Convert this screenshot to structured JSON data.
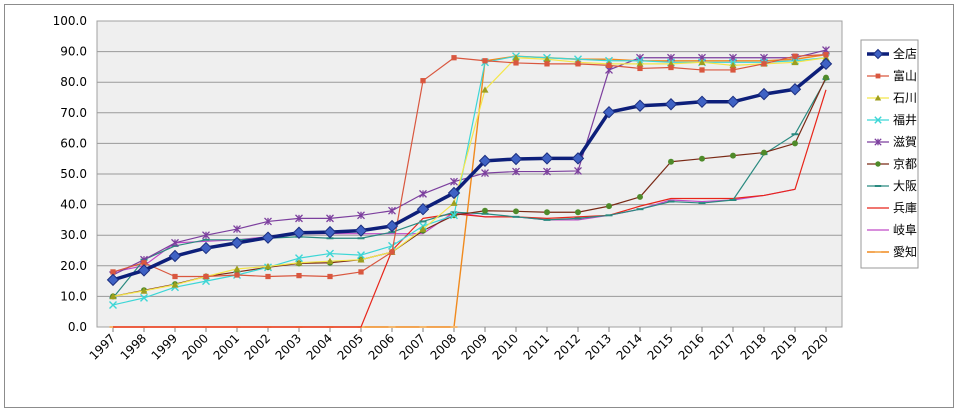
{
  "chart_data": {
    "type": "line",
    "title": "",
    "xlabel": "",
    "ylabel": "",
    "ylim": [
      0,
      100
    ],
    "yticks": [
      "0.0",
      "10.0",
      "20.0",
      "30.0",
      "40.0",
      "50.0",
      "60.0",
      "70.0",
      "80.0",
      "90.0",
      "100.0"
    ],
    "grid": "horizontal",
    "legend_position": "right",
    "categories": [
      "1997",
      "1998",
      "1999",
      "2000",
      "2001",
      "2002",
      "2003",
      "2004",
      "2005",
      "2006",
      "2007",
      "2008",
      "2009",
      "2010",
      "2011",
      "2012",
      "2013",
      "2014",
      "2015",
      "2016",
      "2017",
      "2018",
      "2019",
      "2020"
    ],
    "series": [
      {
        "name": "全店",
        "color": "#0d1f7a",
        "marker": "diamond",
        "width": 3.5,
        "values": [
          15.4,
          18.5,
          23.2,
          25.8,
          27.5,
          29.2,
          30.8,
          31.0,
          31.5,
          33.0,
          38.5,
          43.8,
          54.3,
          54.9,
          55.1,
          55.1,
          70.2,
          72.3,
          72.8,
          73.6,
          73.6,
          76.1,
          77.7,
          86.0
        ]
      },
      {
        "name": "富山",
        "color": "#d9573f",
        "marker": "square",
        "width": 1.2,
        "values": [
          18.0,
          21.0,
          16.5,
          16.5,
          17.0,
          16.5,
          16.8,
          16.5,
          18.0,
          24.5,
          80.5,
          88.0,
          87.0,
          86.3,
          86.0,
          86.0,
          85.5,
          84.5,
          84.8,
          84.0,
          84.0,
          86.0,
          88.5,
          89.0
        ]
      },
      {
        "name": "石川",
        "color": "#9e9e1e",
        "lineColor": "#f4e64a",
        "marker": "triangle",
        "width": 1.2,
        "values": [
          10.0,
          11.8,
          13.8,
          16.5,
          19.0,
          19.8,
          21.0,
          21.5,
          22.0,
          24.5,
          32.0,
          40.5,
          77.5,
          88.0,
          87.5,
          86.5,
          86.0,
          86.0,
          86.0,
          86.5,
          85.5,
          86.0,
          86.5,
          88.0
        ]
      },
      {
        "name": "福井",
        "color": "#3cd6d6",
        "marker": "x",
        "width": 1.2,
        "values": [
          7.2,
          9.5,
          13.0,
          15.0,
          17.0,
          19.5,
          22.5,
          24.0,
          23.5,
          26.5,
          33.0,
          36.5,
          86.5,
          88.5,
          88.0,
          87.5,
          87.0,
          87.0,
          86.5,
          86.5,
          86.5,
          86.5,
          87.0,
          88.0
        ]
      },
      {
        "name": "滋賀",
        "color": "#7c3f9e",
        "marker": "star",
        "width": 1.2,
        "values": [
          17.0,
          22.0,
          27.5,
          30.0,
          32.0,
          34.5,
          35.5,
          35.5,
          36.5,
          38.0,
          43.5,
          47.5,
          50.3,
          50.8,
          50.8,
          51.0,
          84.0,
          88.0,
          88.0,
          88.0,
          88.0,
          88.0,
          88.0,
          90.5
        ]
      },
      {
        "name": "京都",
        "color": "#7a2a16",
        "markerColor": "#4f8a2a",
        "marker": "circle",
        "width": 1.2,
        "values": [
          10.0,
          12.0,
          14.0,
          16.5,
          18.0,
          19.5,
          20.8,
          21.0,
          22.0,
          24.5,
          31.5,
          36.5,
          38.0,
          37.8,
          37.5,
          37.5,
          39.5,
          42.5,
          54.0,
          55.0,
          56.0,
          57.0,
          60.0,
          81.5
        ]
      },
      {
        "name": "大阪",
        "color": "#2a8a80",
        "marker": "dash",
        "width": 1.2,
        "values": [
          9.5,
          22.0,
          26.5,
          28.5,
          28.5,
          29.0,
          29.5,
          29.0,
          29.0,
          31.0,
          34.5,
          37.5,
          37.0,
          36.0,
          35.0,
          35.5,
          36.5,
          38.5,
          41.0,
          40.5,
          41.5,
          56.5,
          63.0,
          81.0
        ]
      },
      {
        "name": "兵庫",
        "color": "#e8251a",
        "marker": "none",
        "width": 1.2,
        "values": [
          0,
          0,
          0,
          0,
          0,
          0,
          0,
          0,
          0,
          25.0,
          35.5,
          37.0,
          36.0,
          36.0,
          35.5,
          36.0,
          36.5,
          39.5,
          42.0,
          42.0,
          42.0,
          43.0,
          45.0,
          77.5
        ]
      },
      {
        "name": "岐阜",
        "color": "#c04ac8",
        "marker": "none",
        "width": 1.2,
        "values": [
          18.0,
          20.0,
          27.5,
          28.0,
          28.5,
          29.5,
          30.5,
          30.5,
          30.5,
          30.5,
          30.5,
          37.5,
          36.0,
          36.0,
          35.0,
          35.0,
          36.5,
          38.5,
          41.5,
          41.0,
          41.5,
          43.0,
          45.0,
          null
        ]
      },
      {
        "name": "愛知",
        "color": "#f08a1e",
        "markerColor": "#f5b86e",
        "marker": "dash",
        "width": 1.4,
        "values": [
          0,
          0,
          0,
          0,
          0,
          0,
          0,
          0,
          0,
          0,
          0,
          0,
          87.0,
          88.5,
          88.0,
          87.5,
          87.5,
          87.0,
          87.0,
          87.0,
          87.0,
          87.0,
          87.5,
          89.0
        ]
      }
    ]
  }
}
